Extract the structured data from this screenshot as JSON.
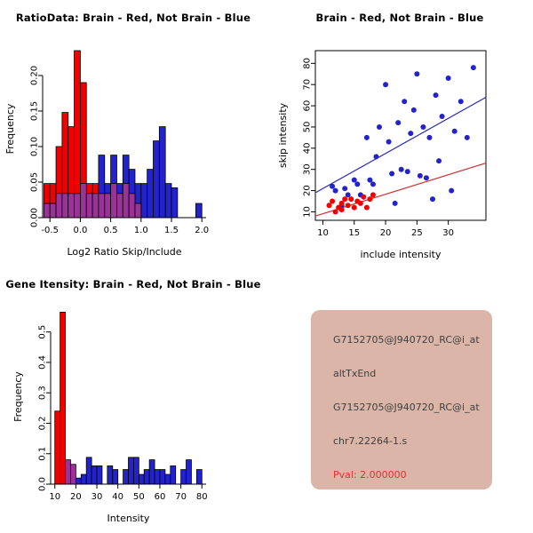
{
  "window": {
    "background": "#FFFFFF"
  },
  "colors": {
    "red": "#F20000",
    "blue": "#2323CD",
    "purple": "#993398",
    "line_blue": "#2A2AB4",
    "line_red": "#C83232",
    "axis": "#000000",
    "info_bg": "#DBB5A8",
    "info_text": "#404040",
    "pval": "#E03232"
  },
  "chart_data": [
    {
      "type": "bar",
      "title": "RatioData: Brain - Red, Not Brain - Blue",
      "xlabel": "Log2 Ratio Skip/Include",
      "ylabel": "Frequency",
      "xlim": [
        -0.62,
        2.07
      ],
      "ylim": [
        0,
        0.25
      ],
      "xticks": [
        -0.5,
        0.0,
        0.5,
        1.0,
        1.5,
        2.0
      ],
      "xtick_labels": [
        "-0.5",
        "0.0",
        "0.5",
        "1.0",
        "1.5",
        "2.0"
      ],
      "yticks": [
        0.0,
        0.05,
        0.1,
        0.15,
        0.2
      ],
      "ytick_labels": [
        "0.00",
        "0.05",
        "0.10",
        "0.15",
        "0.20"
      ],
      "grid": false,
      "legend": {
        "Brain": "red",
        "Not Brain": "blue",
        "Overlap": "purple"
      },
      "bin_width": 0.1,
      "bars": [
        {
          "x": -0.6,
          "h": 0.048,
          "c": "red"
        },
        {
          "x": -0.5,
          "h": 0.048,
          "c": "red"
        },
        {
          "x": -0.4,
          "h": 0.1,
          "c": "red"
        },
        {
          "x": -0.3,
          "h": 0.148,
          "c": "red"
        },
        {
          "x": -0.2,
          "h": 0.128,
          "c": "red"
        },
        {
          "x": -0.1,
          "h": 0.235,
          "c": "red"
        },
        {
          "x": 0.0,
          "h": 0.19,
          "c": "red"
        },
        {
          "x": 0.1,
          "h": 0.048,
          "c": "red"
        },
        {
          "x": 0.2,
          "h": 0.048,
          "c": "red"
        },
        {
          "x": 0.3,
          "h": 0.088,
          "c": "blue"
        },
        {
          "x": 0.4,
          "h": 0.048,
          "c": "blue"
        },
        {
          "x": 0.5,
          "h": 0.088,
          "c": "blue"
        },
        {
          "x": 0.6,
          "h": 0.048,
          "c": "blue"
        },
        {
          "x": 0.7,
          "h": 0.088,
          "c": "blue"
        },
        {
          "x": 0.8,
          "h": 0.068,
          "c": "blue"
        },
        {
          "x": 0.9,
          "h": 0.048,
          "c": "blue"
        },
        {
          "x": 1.0,
          "h": 0.048,
          "c": "blue"
        },
        {
          "x": 1.1,
          "h": 0.068,
          "c": "blue"
        },
        {
          "x": 1.2,
          "h": 0.108,
          "c": "blue"
        },
        {
          "x": 1.3,
          "h": 0.128,
          "c": "blue"
        },
        {
          "x": 1.4,
          "h": 0.048,
          "c": "blue"
        },
        {
          "x": 1.5,
          "h": 0.042,
          "c": "blue"
        },
        {
          "x": 1.9,
          "h": 0.02,
          "c": "blue"
        },
        {
          "x": -0.6,
          "h": 0.02,
          "c": "purple"
        },
        {
          "x": -0.5,
          "h": 0.02,
          "c": "purple"
        },
        {
          "x": -0.4,
          "h": 0.034,
          "c": "purple"
        },
        {
          "x": -0.3,
          "h": 0.034,
          "c": "purple"
        },
        {
          "x": -0.2,
          "h": 0.034,
          "c": "purple"
        },
        {
          "x": -0.1,
          "h": 0.034,
          "c": "purple"
        },
        {
          "x": 0.0,
          "h": 0.048,
          "c": "purple"
        },
        {
          "x": 0.1,
          "h": 0.034,
          "c": "purple"
        },
        {
          "x": 0.2,
          "h": 0.034,
          "c": "purple"
        },
        {
          "x": 0.3,
          "h": 0.034,
          "c": "purple"
        },
        {
          "x": 0.4,
          "h": 0.034,
          "c": "purple"
        },
        {
          "x": 0.5,
          "h": 0.048,
          "c": "purple"
        },
        {
          "x": 0.6,
          "h": 0.034,
          "c": "purple"
        },
        {
          "x": 0.7,
          "h": 0.048,
          "c": "purple"
        },
        {
          "x": 0.8,
          "h": 0.034,
          "c": "purple"
        },
        {
          "x": 0.9,
          "h": 0.02,
          "c": "purple"
        }
      ]
    },
    {
      "type": "scatter",
      "title": "Brain - Red, Not Brain - Blue",
      "xlabel": "include intensity",
      "ylabel": "skip intensity",
      "xlim": [
        8.8,
        36
      ],
      "ylim": [
        6,
        86
      ],
      "xticks": [
        10,
        15,
        20,
        25,
        30
      ],
      "xtick_labels": [
        "10",
        "15",
        "20",
        "25",
        "30"
      ],
      "yticks": [
        10,
        20,
        30,
        40,
        50,
        60,
        70,
        80
      ],
      "ytick_labels": [
        "10",
        "20",
        "30",
        "40",
        "50",
        "60",
        "70",
        "80"
      ],
      "frame": true,
      "grid": false,
      "series": [
        {
          "name": "Not Brain",
          "c": "blue",
          "points": [
            [
              11.5,
              22
            ],
            [
              12,
              20
            ],
            [
              13,
              13
            ],
            [
              13.5,
              21
            ],
            [
              14,
              18
            ],
            [
              15,
              25
            ],
            [
              15.5,
              23
            ],
            [
              16,
              18
            ],
            [
              17,
              45
            ],
            [
              17.5,
              25
            ],
            [
              18,
              23
            ],
            [
              18.5,
              36
            ],
            [
              19,
              50
            ],
            [
              20,
              70
            ],
            [
              20.5,
              43
            ],
            [
              21,
              28
            ],
            [
              21.5,
              14
            ],
            [
              22,
              52
            ],
            [
              22.5,
              30
            ],
            [
              23,
              62
            ],
            [
              23.5,
              29
            ],
            [
              24,
              47
            ],
            [
              24.5,
              58
            ],
            [
              25,
              75
            ],
            [
              25.5,
              27
            ],
            [
              26,
              50
            ],
            [
              26.5,
              26
            ],
            [
              27,
              45
            ],
            [
              27.5,
              16
            ],
            [
              28,
              65
            ],
            [
              28.5,
              34
            ],
            [
              29,
              55
            ],
            [
              30,
              73
            ],
            [
              30.5,
              20
            ],
            [
              31,
              48
            ],
            [
              32,
              62
            ],
            [
              33,
              45
            ],
            [
              34,
              78
            ]
          ]
        },
        {
          "name": "Brain",
          "c": "red",
          "points": [
            [
              11,
              13
            ],
            [
              11.5,
              15
            ],
            [
              12,
              10
            ],
            [
              12.5,
              12
            ],
            [
              13,
              11
            ],
            [
              13,
              14
            ],
            [
              13.5,
              16
            ],
            [
              14,
              13
            ],
            [
              14.5,
              16
            ],
            [
              15,
              12
            ],
            [
              15.5,
              15
            ],
            [
              16,
              14
            ],
            [
              16.5,
              17
            ],
            [
              17,
              12
            ],
            [
              17.5,
              16
            ],
            [
              18,
              18
            ]
          ]
        }
      ],
      "lines": [
        {
          "c": "line_blue",
          "x1": 8.8,
          "y1": 19,
          "x2": 36,
          "y2": 64
        },
        {
          "c": "line_red",
          "x1": 8.8,
          "y1": 8,
          "x2": 36,
          "y2": 33
        }
      ]
    },
    {
      "type": "bar",
      "title": "Gene Itensity: Brain - Red, Not Brain - Blue",
      "xlabel": "Intensity",
      "ylabel": "Frequency",
      "xlim": [
        8,
        82
      ],
      "ylim": [
        0,
        0.575
      ],
      "xticks": [
        10,
        20,
        30,
        40,
        50,
        60,
        70,
        80
      ],
      "xtick_labels": [
        "10",
        "20",
        "30",
        "40",
        "50",
        "60",
        "70",
        "80"
      ],
      "yticks": [
        0.0,
        0.1,
        0.2,
        0.3,
        0.4,
        0.5
      ],
      "ytick_labels": [
        "0.0",
        "0.1",
        "0.2",
        "0.3",
        "0.4",
        "0.5"
      ],
      "grid": false,
      "legend": {
        "Brain": "red",
        "Not Brain": "blue",
        "Overlap": "purple"
      },
      "bin_width": 2.5,
      "bars": [
        {
          "x": 10,
          "h": 0.24,
          "c": "red"
        },
        {
          "x": 12.5,
          "h": 0.565,
          "c": "red"
        },
        {
          "x": 15,
          "h": 0.08,
          "c": "purple"
        },
        {
          "x": 17.5,
          "h": 0.065,
          "c": "purple"
        },
        {
          "x": 20,
          "h": 0.02,
          "c": "blue"
        },
        {
          "x": 22.5,
          "h": 0.032,
          "c": "blue"
        },
        {
          "x": 25,
          "h": 0.088,
          "c": "blue"
        },
        {
          "x": 27.5,
          "h": 0.06,
          "c": "blue"
        },
        {
          "x": 30,
          "h": 0.06,
          "c": "blue"
        },
        {
          "x": 35,
          "h": 0.06,
          "c": "blue"
        },
        {
          "x": 37.5,
          "h": 0.048,
          "c": "blue"
        },
        {
          "x": 42.5,
          "h": 0.048,
          "c": "blue"
        },
        {
          "x": 45,
          "h": 0.088,
          "c": "blue"
        },
        {
          "x": 47.5,
          "h": 0.088,
          "c": "blue"
        },
        {
          "x": 50,
          "h": 0.032,
          "c": "blue"
        },
        {
          "x": 52.5,
          "h": 0.048,
          "c": "blue"
        },
        {
          "x": 55,
          "h": 0.08,
          "c": "blue"
        },
        {
          "x": 57.5,
          "h": 0.048,
          "c": "blue"
        },
        {
          "x": 60,
          "h": 0.048,
          "c": "blue"
        },
        {
          "x": 62.5,
          "h": 0.032,
          "c": "blue"
        },
        {
          "x": 65,
          "h": 0.06,
          "c": "blue"
        },
        {
          "x": 70,
          "h": 0.048,
          "c": "blue"
        },
        {
          "x": 72.5,
          "h": 0.08,
          "c": "blue"
        },
        {
          "x": 77.5,
          "h": 0.048,
          "c": "blue"
        }
      ]
    }
  ],
  "info_panel": {
    "lines": [
      {
        "text": "G7152705@J940720_RC@i_at",
        "color": "info_text"
      },
      {
        "text": "altTxEnd",
        "color": "info_text"
      },
      {
        "text": "G7152705@J940720_RC@i_at",
        "color": "info_text"
      },
      {
        "text": "chr7.22264-1.s",
        "color": "info_text"
      },
      {
        "text": "Pval: 2.000000",
        "color": "pval"
      }
    ]
  }
}
